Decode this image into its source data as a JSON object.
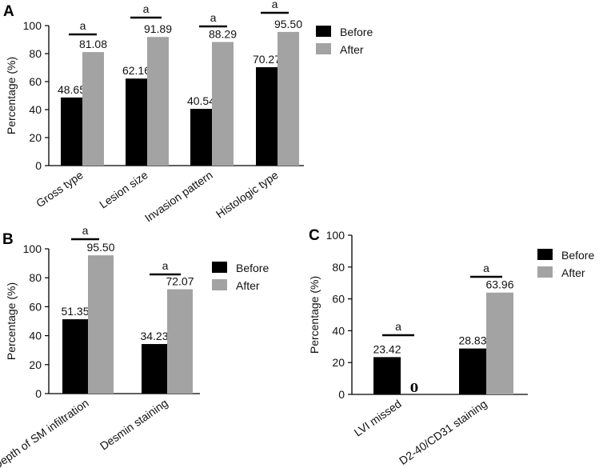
{
  "colors": {
    "before": "#000000",
    "after": "#a3a3a3",
    "axis": "#000000"
  },
  "chart_data": [
    {
      "panel": "A",
      "type": "bar",
      "ylabel": "Percentage (%)",
      "ylim": [
        0,
        100
      ],
      "yticks": [
        "0",
        "20",
        "40",
        "60",
        "80",
        "100"
      ],
      "categories": [
        "Gross type",
        "Lesion size",
        "Invasion pattern",
        "Histologic type"
      ],
      "series": [
        {
          "name": "Before",
          "values": [
            48.65,
            62.16,
            40.54,
            70.27
          ],
          "labels": [
            "48.65",
            "62.16",
            "40.54",
            "70.27"
          ]
        },
        {
          "name": "After",
          "values": [
            81.08,
            91.89,
            88.29,
            95.5
          ],
          "labels": [
            "81.08",
            "91.89",
            "88.29",
            "95.50"
          ]
        }
      ],
      "significance": [
        "a",
        "a",
        "a",
        "a"
      ],
      "legend": [
        "Before",
        "After"
      ]
    },
    {
      "panel": "B",
      "type": "bar",
      "ylabel": "Percentage (%)",
      "ylim": [
        0,
        100
      ],
      "yticks": [
        "0",
        "20",
        "40",
        "60",
        "80",
        "100"
      ],
      "categories": [
        "Depth of SM infiltration",
        "Desmin staining"
      ],
      "series": [
        {
          "name": "Before",
          "values": [
            51.35,
            34.23
          ],
          "labels": [
            "51.35",
            "34.23"
          ]
        },
        {
          "name": "After",
          "values": [
            95.5,
            72.07
          ],
          "labels": [
            "95.50",
            "72.07"
          ]
        }
      ],
      "significance": [
        "a",
        "a"
      ],
      "legend": [
        "Before",
        "After"
      ]
    },
    {
      "panel": "C",
      "type": "bar",
      "ylabel": "Percentage (%)",
      "ylim": [
        0,
        100
      ],
      "yticks": [
        "0",
        "20",
        "40",
        "60",
        "80",
        "100"
      ],
      "categories": [
        "LVI missed",
        "D2-40/CD31 staining"
      ],
      "series": [
        {
          "name": "Before",
          "values": [
            23.42,
            28.83
          ],
          "labels": [
            "23.42",
            "28.83"
          ]
        },
        {
          "name": "After",
          "values": [
            0,
            63.96
          ],
          "labels": [
            "0",
            "63.96"
          ]
        }
      ],
      "significance": [
        "a",
        "a"
      ],
      "legend": [
        "Before",
        "After"
      ]
    }
  ]
}
